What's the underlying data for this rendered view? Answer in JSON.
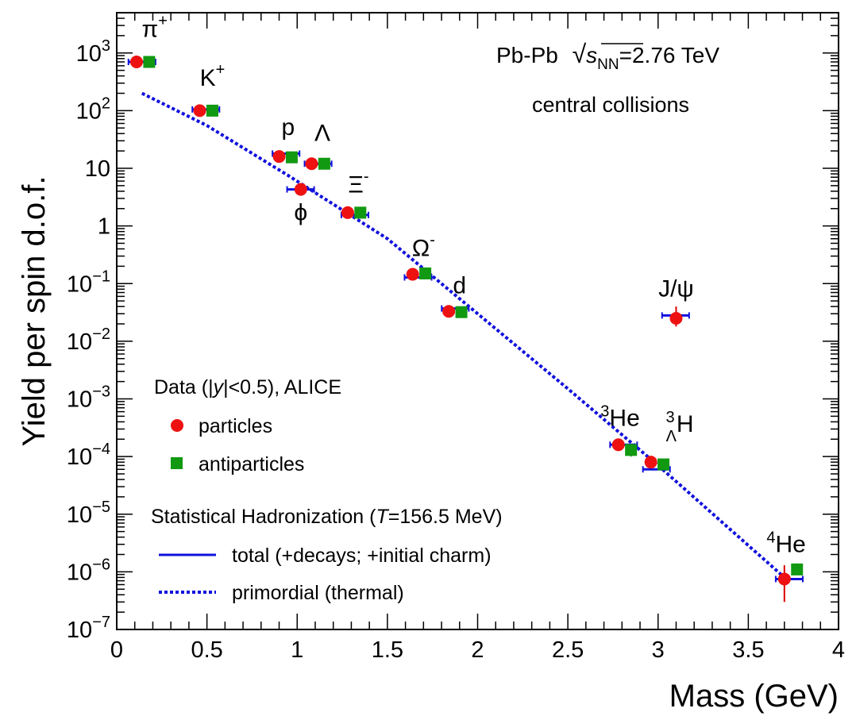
{
  "chart_data": {
    "type": "scatter",
    "title": "Pb-Pb √s_NN=2.76 TeV",
    "title_parts": {
      "system": "Pb-Pb",
      "sqrt": "√",
      "s": "s",
      "nn": "NN",
      "energy": "=2.76 TeV"
    },
    "subtitle": "central collisions",
    "xlabel": "Mass (GeV)",
    "ylabel": "Yield per spin d.o.f.",
    "xlim": [
      0,
      4
    ],
    "ylim": [
      1e-07,
      5000
    ],
    "yscale": "log",
    "x_ticks": [
      {
        "value": 0,
        "label": "0"
      },
      {
        "value": 0.5,
        "label": "0.5"
      },
      {
        "value": 1,
        "label": "1"
      },
      {
        "value": 1.5,
        "label": "1.5"
      },
      {
        "value": 2,
        "label": "2"
      },
      {
        "value": 2.5,
        "label": "2.5"
      },
      {
        "value": 3,
        "label": "3"
      },
      {
        "value": 3.5,
        "label": "3.5"
      },
      {
        "value": 4,
        "label": "4"
      }
    ],
    "y_ticks": [
      {
        "value": 1e-07,
        "base": "10",
        "exp": "−7"
      },
      {
        "value": 1e-06,
        "base": "10",
        "exp": "−6"
      },
      {
        "value": 1e-05,
        "base": "10",
        "exp": "−5"
      },
      {
        "value": 0.0001,
        "base": "10",
        "exp": "−4"
      },
      {
        "value": 0.001,
        "base": "10",
        "exp": "−3"
      },
      {
        "value": 0.01,
        "base": "10",
        "exp": "−2"
      },
      {
        "value": 0.1,
        "base": "10",
        "exp": "−1"
      },
      {
        "value": 1,
        "base": "1",
        "exp": ""
      },
      {
        "value": 10,
        "base": "10",
        "exp": ""
      },
      {
        "value": 100,
        "base": "10",
        "exp": "2"
      },
      {
        "value": 1000,
        "base": "10",
        "exp": "3"
      }
    ],
    "series": [
      {
        "name": "particles",
        "marker": "circle",
        "color": "#ee1111",
        "points": [
          {
            "x": 0.11,
            "y": 700,
            "xerr": 0.07
          },
          {
            "x": 0.46,
            "y": 100,
            "xerr": 0.07
          },
          {
            "x": 0.9,
            "y": 16,
            "xerr": 0.07
          },
          {
            "x": 1.08,
            "y": 12,
            "xerr": 0.07
          },
          {
            "x": 1.02,
            "y": 4.3,
            "xerr": 0.07
          },
          {
            "x": 1.28,
            "y": 1.7,
            "xerr": 0.07
          },
          {
            "x": 1.64,
            "y": 0.145,
            "xerr": 0.07
          },
          {
            "x": 1.84,
            "y": 0.033,
            "xerr": 0.07
          },
          {
            "x": 3.1,
            "y": 0.025,
            "xerr": 0.07,
            "ylo": 0.018,
            "yhi": 0.04
          },
          {
            "x": 2.78,
            "y": 0.00016,
            "xerr": 0.07
          },
          {
            "x": 2.96,
            "y": 8e-05,
            "xerr": 0.07
          },
          {
            "x": 3.7,
            "y": 7.5e-07,
            "xerr": 0.07,
            "ylo": 3e-07,
            "yhi": 1.3e-06
          }
        ]
      },
      {
        "name": "antiparticles",
        "marker": "square",
        "color": "#119911",
        "points": [
          {
            "x": 0.18,
            "y": 700
          },
          {
            "x": 0.53,
            "y": 100
          },
          {
            "x": 0.97,
            "y": 15.5
          },
          {
            "x": 1.15,
            "y": 12
          },
          {
            "x": 1.35,
            "y": 1.7
          },
          {
            "x": 1.71,
            "y": 0.15
          },
          {
            "x": 1.91,
            "y": 0.032
          },
          {
            "x": 2.85,
            "y": 0.00013,
            "ylo": 0.0001,
            "yhi": 0.00016
          },
          {
            "x": 3.03,
            "y": 7.3e-05
          },
          {
            "x": 3.77,
            "y": 1.1e-06,
            "ylo": 9e-07,
            "yhi": 1.4e-06
          }
        ]
      }
    ],
    "model": [
      {
        "mass": 0.14,
        "total": 700
      },
      {
        "mass": 0.494,
        "total": 105
      },
      {
        "mass": 0.938,
        "total": 18
      },
      {
        "mass": 1.019,
        "total": 4.3
      },
      {
        "mass": 1.116,
        "total": 12
      },
      {
        "mass": 1.32,
        "total": 1.55
      },
      {
        "mass": 1.67,
        "total": 0.128
      },
      {
        "mass": 1.876,
        "total": 0.037
      },
      {
        "mass": 3.097,
        "total": 0.028
      },
      {
        "mass": 2.809,
        "total": 0.00016
      },
      {
        "mass": 2.991,
        "total": 6e-05
      },
      {
        "mass": 3.727,
        "total": 7.5e-07
      }
    ],
    "primordial_line": [
      {
        "x": 0.14,
        "y": 200
      },
      {
        "x": 0.5,
        "y": 55
      },
      {
        "x": 0.95,
        "y": 7.5
      },
      {
        "x": 1.5,
        "y": 0.6
      },
      {
        "x": 2.0,
        "y": 0.03
      },
      {
        "x": 2.5,
        "y": 0.0015
      },
      {
        "x": 3.0,
        "y": 7e-05
      },
      {
        "x": 3.7,
        "y": 8e-07
      }
    ],
    "particle_labels": [
      {
        "name": "pi-plus",
        "text": "π",
        "sup": "+",
        "x": 0.21,
        "y": 1900
      },
      {
        "name": "k-plus",
        "text": "K",
        "sup": "+",
        "x": 0.53,
        "y": 270
      },
      {
        "name": "proton",
        "text": "p",
        "x": 0.95,
        "y": 38
      },
      {
        "name": "lambda",
        "text": "Λ",
        "x": 1.14,
        "y": 30
      },
      {
        "name": "phi",
        "text": "ϕ",
        "x": 1.02,
        "y": 1.25
      },
      {
        "name": "xi-minus",
        "text": "Ξ",
        "sup": "-",
        "x": 1.34,
        "y": 3.8
      },
      {
        "name": "omega-minus",
        "text": "Ω",
        "sup": "-",
        "x": 1.7,
        "y": 0.3
      },
      {
        "name": "deuteron",
        "text": "d",
        "x": 1.9,
        "y": 0.068
      },
      {
        "name": "j-psi",
        "text": "J/ψ",
        "x": 3.1,
        "y": 0.06
      },
      {
        "name": "helium-3",
        "text": "He",
        "pre_sup": "3",
        "x": 2.79,
        "y": 0.00034
      },
      {
        "name": "hypertriton",
        "text": "H",
        "pre_sup": "3",
        "pre_sub": "Λ",
        "x": 3.12,
        "y": 0.00027
      },
      {
        "name": "helium-4",
        "text": "He",
        "pre_sup": "4",
        "x": 3.71,
        "y": 2.2e-06
      }
    ],
    "legend": {
      "data_header": {
        "pre": "Data (|",
        "italic": "y",
        "post": "|<0.5), ALICE"
      },
      "particles": "particles",
      "antiparticles": "antiparticles",
      "model_header": {
        "pre": "Statistical Hadronization (",
        "italic": "T",
        "post": "=156.5 MeV)"
      },
      "total": "total (+decays; +initial charm)",
      "primordial": "primordial (thermal)"
    },
    "colors": {
      "particles": "#ee1111",
      "antiparticles": "#119911",
      "model": "#1111dd",
      "particle_errors": "#dd0000"
    }
  }
}
